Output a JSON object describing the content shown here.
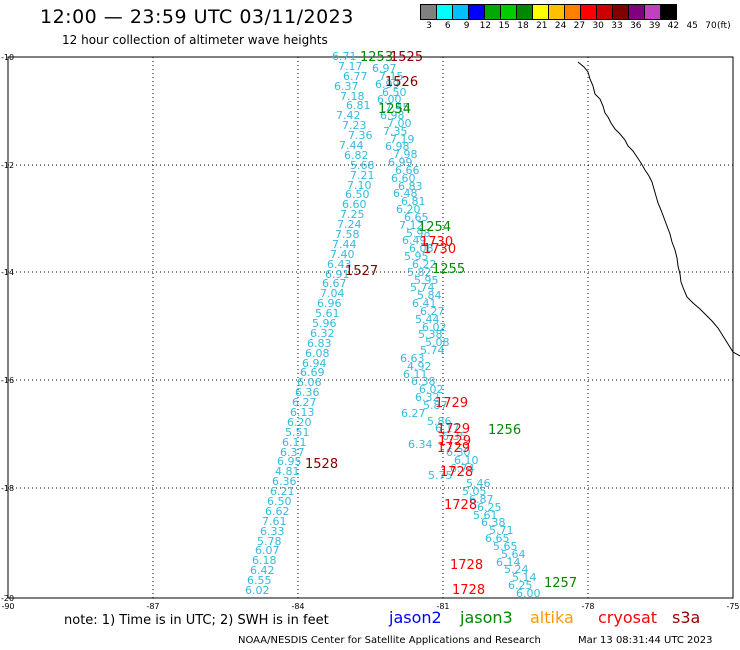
{
  "header": {
    "title": "12:00 — 23:59 UTC 03/11/2023",
    "subtitle": "12 hour collection of altimeter wave heights"
  },
  "legend": {
    "unit_label": "(ft)",
    "colors": [
      "#808080",
      "#00ffff",
      "#00bfff",
      "#0000ff",
      "#00aa00",
      "#00cc00",
      "#008800",
      "#ffff00",
      "#ffc000",
      "#ff8000",
      "#ff0000",
      "#cc0000",
      "#800000",
      "#800080",
      "#c040c0",
      "#000000"
    ],
    "labels": [
      "3",
      "6",
      "9",
      "12",
      "15",
      "18",
      "21",
      "24",
      "27",
      "30",
      "33",
      "36",
      "39",
      "42",
      "45",
      "70"
    ]
  },
  "map": {
    "lat_labels": [
      "-10",
      "-12",
      "-14",
      "-16",
      "-18",
      "-20"
    ],
    "lon_labels": [
      "-90",
      "-87",
      "-84",
      "-81",
      "-78",
      "-75"
    ],
    "wave_values_1": [
      "6.71",
      "7.17",
      "6.77",
      "6.37",
      "7.18",
      "6.81",
      "7.42",
      "7.23",
      "7.36",
      "7.44",
      "6.82",
      "5.68",
      "7.21",
      "7.10",
      "6.50",
      "6.60",
      "7.25",
      "7.24",
      "7.58",
      "7.44",
      "7.40",
      "6.43",
      "6.91",
      "6.67",
      "7.04",
      "6.96",
      "5.61",
      "5.96",
      "6.32",
      "6.83",
      "6.08",
      "6.94",
      "6.69",
      "6.06",
      "6.36",
      "6.27",
      "6.13",
      "6.20",
      "5.51",
      "6.11",
      "6.37",
      "6.95",
      "4.81",
      "6.36",
      "6.21",
      "6.50",
      "6.62",
      "7.61",
      "6.33",
      "5.78",
      "6.07",
      "6.18",
      "6.42",
      "6.55",
      "6.02"
    ],
    "wave_values_2": [
      "6.97",
      "7.15",
      "6.99",
      "6.50",
      "6.00",
      "7.45",
      "6.98",
      "7.00",
      "7.35",
      "7.19",
      "6.98",
      "7.98",
      "6.99",
      "6.66",
      "6.60",
      "6.83",
      "6.48",
      "6.81",
      "6.20",
      "6.65",
      "7.12",
      "5.98",
      "6.49",
      "6.08",
      "5.95",
      "6.22",
      "5.82",
      "5.95",
      "5.74",
      "5.84",
      "6.41",
      "6.27",
      "5.44",
      "6.02",
      "5.38",
      "5.08",
      "5.74",
      "6.63",
      "4.92",
      "6.11",
      "6.38",
      "6.02",
      "6.32",
      "5.87",
      "6.27",
      "5.86",
      "6.17",
      "6.35",
      "6.34",
      "6.30",
      "6.10",
      "6.74",
      "5.75",
      "5.46",
      "5.05",
      "6.87",
      "6.25",
      "5.61",
      "6.38",
      "5.71",
      "6.65",
      "5.65",
      "5.64",
      "6.14",
      "5.24",
      "5.14",
      "6.25",
      "6.00"
    ],
    "time_labels_green": [
      "1253",
      "1254",
      "1254",
      "1255",
      "1256",
      "1257"
    ],
    "time_labels_maroon": [
      "1525",
      "1526",
      "1527",
      "1528"
    ],
    "time_labels_red": [
      "1730",
      "1730",
      "1729",
      "1729",
      "1729",
      "1729",
      "1728",
      "1728",
      "1728",
      "1728"
    ]
  },
  "footer": {
    "note": "note:  1) Time is in UTC;  2) SWH is in feet",
    "missions": [
      {
        "name": "jason2",
        "color": "#0000ff"
      },
      {
        "name": "jason3",
        "color": "#008800"
      },
      {
        "name": "altika",
        "color": "#ff9900"
      },
      {
        "name": "cryosat",
        "color": "#ff0000"
      },
      {
        "name": "s3a",
        "color": "#990000"
      }
    ],
    "credit": "NOAA/NESDIS Center for Satellite Applications and Research",
    "timestamp": "Mar 13 08:31:44 UTC 2023"
  }
}
